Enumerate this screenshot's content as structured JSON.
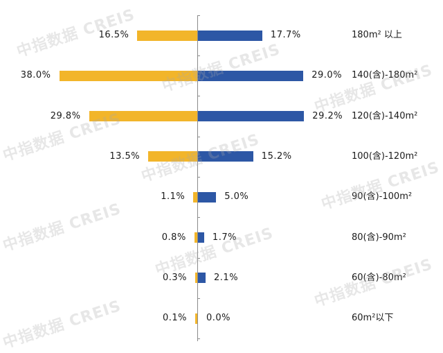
{
  "chart_data": {
    "type": "bar",
    "orientation": "horizontal-diverging",
    "title": "",
    "xlabel": "",
    "ylabel": "",
    "categories": [
      "180m² 以上",
      "140(含)-180m²",
      "120(含)-140m²",
      "100(含)-120m²",
      "90(含)-100m²",
      "80(含)-90m²",
      "60(含)-80m²",
      "60m²以下"
    ],
    "series": [
      {
        "name": "left",
        "color": "#F2B52A",
        "values": [
          16.5,
          38.0,
          29.8,
          13.5,
          1.1,
          0.8,
          0.3,
          0.1
        ],
        "labels": [
          "16.5%",
          "38.0%",
          "29.8%",
          "13.5%",
          "1.1%",
          "0.8%",
          "0.3%",
          "0.1%"
        ]
      },
      {
        "name": "right",
        "color": "#2D57A5",
        "values": [
          17.7,
          29.0,
          29.2,
          15.2,
          5.0,
          1.7,
          2.1,
          0.0
        ],
        "labels": [
          "17.7%",
          "29.0%",
          "29.2%",
          "15.2%",
          "5.0%",
          "1.7%",
          "2.1%",
          "0.0%"
        ]
      }
    ],
    "grid": false,
    "legend": "none"
  },
  "watermark": "中指数据 CREIS",
  "colors": {
    "left": "#F2B52A",
    "right": "#2D57A5",
    "axis": "#8a8a8a"
  }
}
